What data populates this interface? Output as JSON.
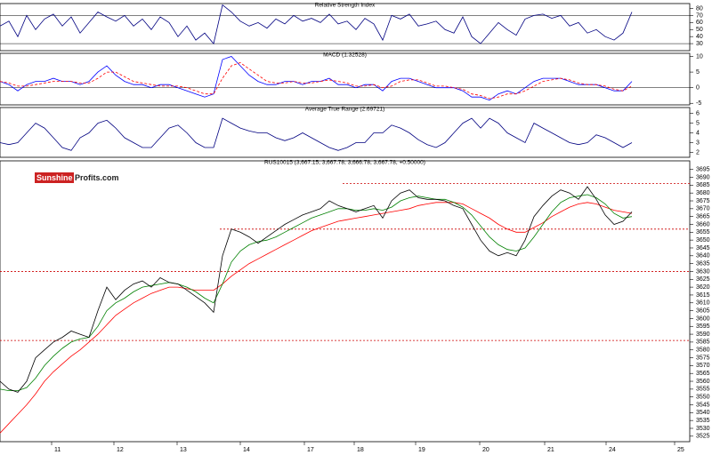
{
  "logo": {
    "part1": "Sunshine",
    "part2": "Profits.com"
  },
  "chart_data": [
    {
      "type": "line",
      "title": "Relative Strength Index",
      "xlim": [
        0,
        155
      ],
      "ylim": [
        20,
        87
      ],
      "yticks": [
        30,
        40,
        50,
        60,
        70,
        80
      ],
      "reference_lines": [
        {
          "y": 70
        },
        {
          "y": 30
        }
      ],
      "x": [
        0,
        2,
        4,
        6,
        8,
        10,
        12,
        14,
        16,
        18,
        20,
        22,
        24,
        26,
        28,
        30,
        32,
        34,
        36,
        38,
        40,
        42,
        44,
        46,
        48,
        50,
        52,
        54,
        56,
        58,
        60,
        62,
        64,
        66,
        68,
        70,
        72,
        74,
        76,
        78,
        80,
        82,
        84,
        86,
        88,
        90,
        92,
        94,
        96,
        98,
        100,
        102,
        104,
        106,
        108,
        110,
        112,
        114,
        116,
        118,
        120,
        122,
        124,
        126,
        128,
        130,
        132,
        134,
        136,
        138,
        140,
        142
      ],
      "series": [
        {
          "color": "#000080",
          "values": [
            55,
            62,
            40,
            70,
            50,
            65,
            72,
            55,
            68,
            45,
            60,
            75,
            68,
            62,
            70,
            55,
            65,
            50,
            68,
            60,
            40,
            55,
            35,
            45,
            30,
            85,
            75,
            62,
            55,
            60,
            52,
            65,
            58,
            70,
            62,
            66,
            60,
            72,
            58,
            62,
            50,
            66,
            58,
            35,
            70,
            65,
            72,
            55,
            58,
            62,
            50,
            45,
            68,
            40,
            30,
            45,
            60,
            50,
            42,
            65,
            70,
            72,
            66,
            70,
            55,
            60,
            45,
            50,
            40,
            35,
            45,
            75
          ]
        }
      ]
    },
    {
      "type": "line",
      "title": "MACD (1.32528)",
      "xlim": [
        0,
        155
      ],
      "ylim": [
        -5.5,
        11
      ],
      "yticks": [
        -5,
        0,
        5,
        10
      ],
      "reference_lines": [
        {
          "y": 0
        }
      ],
      "x": [
        0,
        2,
        4,
        6,
        8,
        10,
        12,
        14,
        16,
        18,
        20,
        22,
        24,
        26,
        28,
        30,
        32,
        34,
        36,
        38,
        40,
        42,
        44,
        46,
        48,
        50,
        52,
        54,
        56,
        58,
        60,
        62,
        64,
        66,
        68,
        70,
        72,
        74,
        76,
        78,
        80,
        82,
        84,
        86,
        88,
        90,
        92,
        94,
        96,
        98,
        100,
        102,
        104,
        106,
        108,
        110,
        112,
        114,
        116,
        118,
        120,
        122,
        124,
        126,
        128,
        130,
        132,
        134,
        136,
        138,
        140,
        142
      ],
      "series": [
        {
          "color": "#0000ff",
          "values": [
            2,
            1,
            -1,
            1,
            2,
            2,
            3,
            2,
            2,
            1,
            2,
            5,
            7,
            4,
            2,
            1,
            1,
            0,
            1,
            1,
            0,
            -1,
            -2,
            -3,
            -2,
            9,
            10,
            7,
            4,
            2,
            1,
            1,
            2,
            2,
            1,
            2,
            2,
            3,
            1,
            1,
            0,
            1,
            1,
            -1,
            2,
            3,
            3,
            2,
            1,
            0,
            0,
            0,
            -1,
            -3,
            -3,
            -4,
            -2,
            -1,
            -2,
            0,
            2,
            3,
            3,
            3,
            2,
            1,
            1,
            1,
            0,
            -1,
            -1,
            2
          ]
        },
        {
          "color": "#ff0000",
          "dashed": true,
          "values": [
            2,
            1.5,
            0.5,
            0.5,
            1,
            1.5,
            2,
            2,
            2,
            1.5,
            1.5,
            3,
            5,
            5,
            3.5,
            2,
            1.5,
            1,
            0.5,
            0.5,
            0.5,
            0,
            -1,
            -2,
            -2,
            3,
            7,
            8,
            6,
            4,
            2,
            1.5,
            1.5,
            2,
            1.5,
            1.5,
            2,
            2.5,
            2,
            1.5,
            0.5,
            0.5,
            1,
            0,
            0.5,
            2,
            2.5,
            2.5,
            1.5,
            0.5,
            0.5,
            0,
            -0.5,
            -2,
            -2.5,
            -3.5,
            -3,
            -2,
            -2,
            -1,
            0.5,
            2,
            2.5,
            3,
            2.5,
            1.5,
            1,
            1,
            0.5,
            -0.5,
            -1,
            0.5
          ]
        }
      ]
    },
    {
      "type": "line",
      "title": "Average True Range (2.69721)",
      "xlim": [
        0,
        155
      ],
      "ylim": [
        1.5,
        6.6
      ],
      "yticks": [
        2,
        3,
        4,
        5,
        6
      ],
      "x": [
        0,
        2,
        4,
        6,
        8,
        10,
        12,
        14,
        16,
        18,
        20,
        22,
        24,
        26,
        28,
        30,
        32,
        34,
        36,
        38,
        40,
        42,
        44,
        46,
        48,
        50,
        52,
        54,
        56,
        58,
        60,
        62,
        64,
        66,
        68,
        70,
        72,
        74,
        76,
        78,
        80,
        82,
        84,
        86,
        88,
        90,
        92,
        94,
        96,
        98,
        100,
        102,
        104,
        106,
        108,
        110,
        112,
        114,
        116,
        118,
        120,
        122,
        124,
        126,
        128,
        130,
        132,
        134,
        136,
        138,
        140,
        142
      ],
      "series": [
        {
          "color": "#000080",
          "values": [
            3,
            2.8,
            3,
            4,
            5,
            4.5,
            3.5,
            2.5,
            2.2,
            3.5,
            4,
            5,
            5.3,
            4.5,
            3.5,
            3,
            2.5,
            2.5,
            3.5,
            4.5,
            4.8,
            4,
            3,
            2.5,
            2.5,
            5.5,
            5,
            4.5,
            4.2,
            4,
            4,
            3.5,
            3.2,
            3.5,
            4,
            3.5,
            3,
            2.5,
            2.2,
            2.5,
            3,
            3,
            4,
            4,
            4.8,
            4.5,
            4,
            3.3,
            2.8,
            2.5,
            3,
            4,
            5,
            5.5,
            4.5,
            5.5,
            5,
            4,
            3.5,
            3,
            5,
            4.5,
            4,
            3.5,
            3,
            2.8,
            3,
            3.8,
            3.5,
            3,
            2.5,
            3
          ]
        }
      ]
    },
    {
      "type": "line",
      "title": "RUS10015 (3,667.15, 3,667.78, 3,666.78, 3,667.78, +0.50000)",
      "xlim": [
        0,
        155
      ],
      "ylim": [
        3521.5,
        3700.5
      ],
      "yticks": [
        3525,
        3530,
        3535,
        3540,
        3545,
        3550,
        3555,
        3560,
        3565,
        3570,
        3575,
        3580,
        3585,
        3590,
        3595,
        3600,
        3605,
        3610,
        3615,
        3620,
        3625,
        3630,
        3635,
        3640,
        3645,
        3650,
        3655,
        3660,
        3665,
        3670,
        3675,
        3680,
        3685,
        3690,
        3695
      ],
      "xticks": [
        {
          "value": 11.6,
          "label": "11"
        },
        {
          "value": 25.6,
          "label": "12"
        },
        {
          "value": 39.8,
          "label": "13"
        },
        {
          "value": 54,
          "label": "14"
        },
        {
          "value": 68.4,
          "label": "17"
        },
        {
          "value": 79.6,
          "label": "18"
        },
        {
          "value": 93.4,
          "label": "19"
        },
        {
          "value": 107.8,
          "label": "20"
        },
        {
          "value": 122.4,
          "label": "21"
        },
        {
          "value": 136.2,
          "label": "24"
        },
        {
          "value": 151.6,
          "label": "25"
        }
      ],
      "reference_lines": [
        {
          "y": 3686,
          "x_start": 77
        },
        {
          "y": 3657,
          "x_start": 49.4
        },
        {
          "y": 3630
        },
        {
          "y": 3586
        }
      ],
      "x": [
        0,
        2,
        4,
        6,
        8,
        10,
        12,
        14,
        16,
        18,
        20,
        22,
        24,
        26,
        28,
        30,
        32,
        34,
        36,
        38,
        40,
        42,
        44,
        46,
        48,
        50,
        52,
        54,
        56,
        58,
        60,
        62,
        64,
        66,
        68,
        70,
        72,
        74,
        76,
        78,
        80,
        82,
        84,
        86,
        88,
        90,
        92,
        94,
        96,
        98,
        100,
        102,
        104,
        106,
        108,
        110,
        112,
        114,
        116,
        118,
        120,
        122,
        124,
        126,
        128,
        130,
        132,
        134,
        136,
        138,
        140,
        142
      ],
      "series": [
        {
          "color": "#ff0000",
          "values": [
            3527,
            3533,
            3539,
            3545,
            3552,
            3560,
            3566,
            3571,
            3576,
            3580,
            3585,
            3590,
            3596,
            3602,
            3606,
            3610,
            3613,
            3616,
            3618,
            3620,
            3620,
            3619,
            3618,
            3618,
            3618,
            3622,
            3627,
            3631,
            3635,
            3638,
            3641,
            3644,
            3647,
            3650,
            3653,
            3656,
            3658,
            3660,
            3662,
            3663,
            3664,
            3665,
            3666,
            3667,
            3668,
            3669,
            3670,
            3672,
            3673,
            3674,
            3674,
            3674,
            3673,
            3670,
            3667,
            3664,
            3660,
            3657,
            3655,
            3655,
            3658,
            3661,
            3665,
            3668,
            3671,
            3673,
            3674,
            3673,
            3671,
            3669,
            3668,
            3667
          ]
        },
        {
          "color": "#008000",
          "values": [
            3555,
            3554,
            3554,
            3556,
            3562,
            3570,
            3576,
            3581,
            3585,
            3587,
            3588,
            3595,
            3605,
            3610,
            3613,
            3617,
            3620,
            3621,
            3622,
            3623,
            3622,
            3620,
            3617,
            3613,
            3610,
            3622,
            3636,
            3643,
            3647,
            3649,
            3650,
            3652,
            3655,
            3658,
            3661,
            3664,
            3666,
            3668,
            3670,
            3670,
            3669,
            3669,
            3670,
            3669,
            3671,
            3675,
            3677,
            3678,
            3677,
            3676,
            3676,
            3674,
            3671,
            3666,
            3659,
            3652,
            3647,
            3644,
            3643,
            3645,
            3652,
            3660,
            3668,
            3674,
            3677,
            3678,
            3679,
            3677,
            3673,
            3667,
            3664,
            3665
          ]
        },
        {
          "color": "#000000",
          "values": [
            3560,
            3555,
            3553,
            3560,
            3575,
            3580,
            3585,
            3588,
            3592,
            3590,
            3588,
            3605,
            3620,
            3612,
            3618,
            3622,
            3624,
            3620,
            3626,
            3623,
            3622,
            3618,
            3614,
            3610,
            3604,
            3640,
            3657,
            3655,
            3652,
            3648,
            3652,
            3656,
            3660,
            3663,
            3666,
            3668,
            3670,
            3675,
            3672,
            3670,
            3668,
            3670,
            3672,
            3664,
            3675,
            3680,
            3682,
            3677,
            3676,
            3676,
            3675,
            3672,
            3670,
            3660,
            3650,
            3643,
            3640,
            3642,
            3640,
            3650,
            3665,
            3672,
            3678,
            3682,
            3680,
            3676,
            3684,
            3676,
            3666,
            3660,
            3662,
            3668
          ]
        }
      ]
    }
  ]
}
